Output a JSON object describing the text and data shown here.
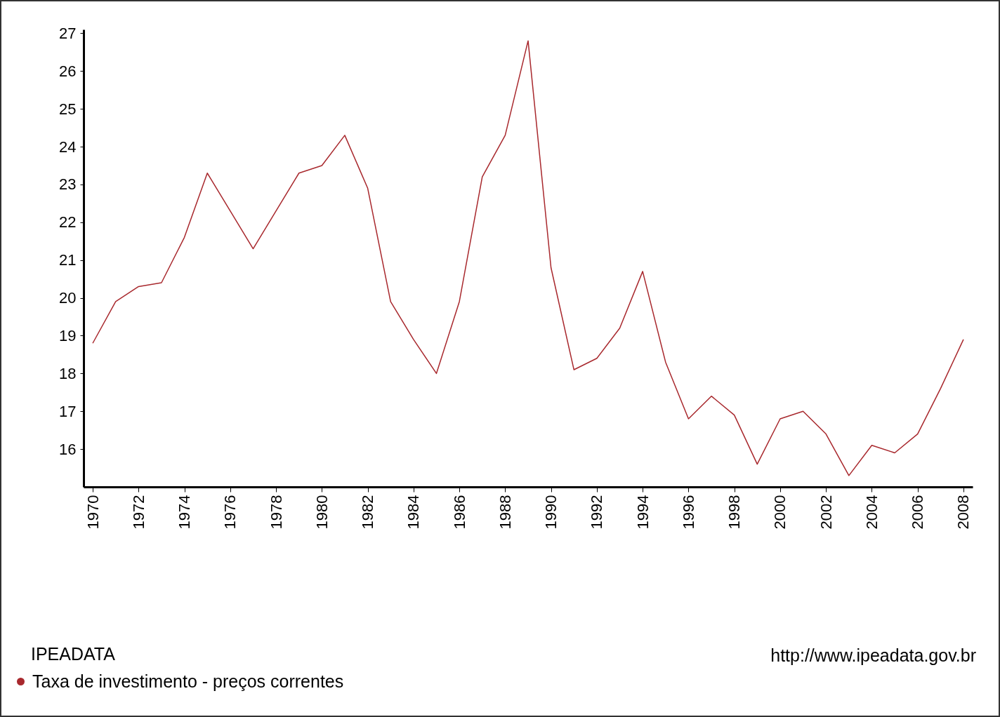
{
  "chart_data": {
    "type": "line",
    "x": [
      1970,
      1971,
      1972,
      1973,
      1974,
      1975,
      1976,
      1977,
      1978,
      1979,
      1980,
      1981,
      1982,
      1983,
      1984,
      1985,
      1986,
      1987,
      1988,
      1989,
      1990,
      1991,
      1992,
      1993,
      1994,
      1995,
      1996,
      1997,
      1998,
      1999,
      2000,
      2001,
      2002,
      2003,
      2004,
      2005,
      2006,
      2007,
      2008
    ],
    "series": [
      {
        "name": "Taxa de investimento - preços correntes",
        "color": "#a8282d",
        "values": [
          18.8,
          19.9,
          20.3,
          20.4,
          21.6,
          23.3,
          22.3,
          21.3,
          22.3,
          23.3,
          23.5,
          24.3,
          22.9,
          19.9,
          18.9,
          18.0,
          19.9,
          23.2,
          24.3,
          26.8,
          20.8,
          18.1,
          18.4,
          19.2,
          20.7,
          18.3,
          16.8,
          17.4,
          16.9,
          15.6,
          16.8,
          17.0,
          16.4,
          15.3,
          16.1,
          15.9,
          16.4,
          17.6,
          18.9
        ]
      }
    ],
    "xlim": [
      1969.6,
      2008.4
    ],
    "xticks": [
      1970,
      1972,
      1974,
      1976,
      1978,
      1980,
      1982,
      1984,
      1986,
      1988,
      1990,
      1992,
      1994,
      1996,
      1998,
      2000,
      2002,
      2004,
      2006,
      2008
    ],
    "ylim": [
      15,
      27.1
    ],
    "yticks": [
      16,
      17,
      18,
      19,
      20,
      21,
      22,
      23,
      24,
      25,
      26,
      27
    ],
    "grid": false,
    "legend": "bottom left",
    "annotations": [
      "IPEADATA",
      "http://www.ipeadata.gov.br"
    ]
  }
}
